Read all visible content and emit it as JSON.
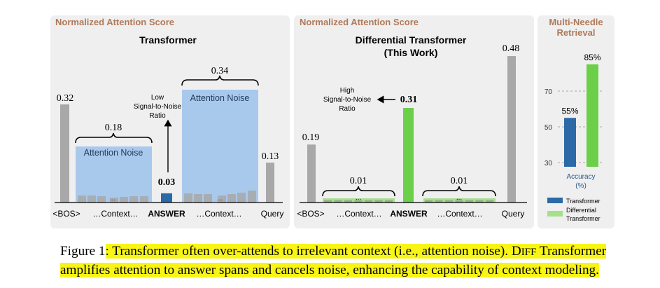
{
  "panels": {
    "left": {
      "header": "Normalized Attention Score",
      "title": "Transformer",
      "noise_left_label": "Attention Noise",
      "noise_right_label": "Attention Noise",
      "noise_left_value": "0.18",
      "noise_right_value": "0.34",
      "bos_value": "0.32",
      "answer_value": "0.03",
      "query_value": "0.13",
      "ellipsis": "...",
      "snr_annotation": [
        "Low",
        "Signal-to-Noise",
        "Ratio"
      ],
      "xticks": [
        "<BOS>",
        "…Context…",
        "ANSWER",
        "…Context…",
        "Query"
      ]
    },
    "middle": {
      "header": "Normalized Attention Score",
      "title_line1": "Differential Transformer",
      "title_line2": "(This Work)",
      "bos_value": "0.19",
      "answer_value": "0.31",
      "query_value": "0.48",
      "noise_left_value": "0.01",
      "noise_right_value": "0.01",
      "ellipsis": "...",
      "snr_annotation": [
        "High",
        "Signal-to-Noise",
        "Ratio"
      ],
      "xticks": [
        "<BOS>",
        "…Context…",
        "ANSWER",
        "…Context…",
        "Query"
      ]
    },
    "right": {
      "header_line1": "Multi-Needle",
      "header_line2": "Retrieval",
      "xlabel_line1": "Accuracy",
      "xlabel_line2": "(%)",
      "legend": [
        {
          "label": "Transformer",
          "color": "#2b6aa6"
        },
        {
          "label_line1": "Differential",
          "label_line2": "Transformer",
          "color": "#a6e08a"
        }
      ]
    }
  },
  "chart_data": [
    {
      "type": "bar",
      "title": "Transformer",
      "ylabel": "Normalized Attention Score",
      "categories": [
        "<BOS>",
        "…Context…",
        "ANSWER",
        "…Context…",
        "Query"
      ],
      "values": [
        0.32,
        0.18,
        0.03,
        0.34,
        0.13
      ],
      "ylim": [
        0,
        0.5
      ],
      "colors": {
        "bos": "#a8a8a8",
        "noise_region": "#a9c9ec",
        "answer": "#2b6aa6",
        "query": "#a8a8a8"
      }
    },
    {
      "type": "bar",
      "title": "Differential Transformer (This Work)",
      "ylabel": "Normalized Attention Score",
      "categories": [
        "<BOS>",
        "…Context…",
        "ANSWER",
        "…Context…",
        "Query"
      ],
      "values": [
        0.19,
        0.01,
        0.31,
        0.01,
        0.48
      ],
      "ylim": [
        0,
        0.5
      ],
      "colors": {
        "bos": "#a8a8a8",
        "context": "#a6e08a",
        "answer": "#6ccf4a",
        "query": "#a8a8a8"
      }
    },
    {
      "type": "bar",
      "title": "Multi-Needle Retrieval",
      "xlabel": "Accuracy (%)",
      "series": [
        {
          "name": "Transformer",
          "values": [
            55
          ],
          "label": "55%",
          "color": "#2b6aa6"
        },
        {
          "name": "Differential Transformer",
          "values": [
            85
          ],
          "label": "85%",
          "color": "#6ccf4a"
        }
      ],
      "yticks": [
        30,
        50,
        70
      ],
      "ylim": [
        20,
        90
      ],
      "grid": true
    }
  ],
  "caption": {
    "prefix": "Figure 1",
    "highlight_a": ": Transformer often over-attends to irrelevant context (i.e., attention noise). D",
    "highlight_sc": "IFF",
    "highlight_b": " Transformer amplifies attention to answer spans and cancels noise, enhancing the capability of context modeling."
  }
}
